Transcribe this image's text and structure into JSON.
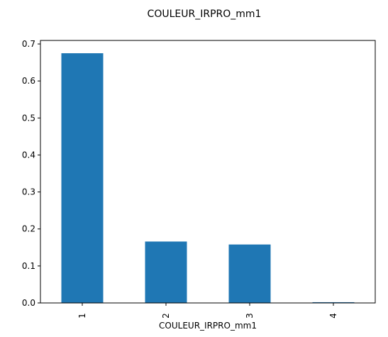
{
  "chart_data": {
    "type": "bar",
    "title": "COULEUR_IRPRO_mm1",
    "xlabel": "COULEUR_IRPRO_mm1",
    "ylabel": "",
    "categories": [
      "1",
      "2",
      "3",
      "4"
    ],
    "values": [
      0.675,
      0.166,
      0.158,
      0.002
    ],
    "ylim": [
      0,
      0.7
    ],
    "yticks": [
      "0.0",
      "0.1",
      "0.2",
      "0.3",
      "0.4",
      "0.5",
      "0.6",
      "0.7"
    ],
    "grid": false,
    "bar_color": "#1f77b4"
  }
}
